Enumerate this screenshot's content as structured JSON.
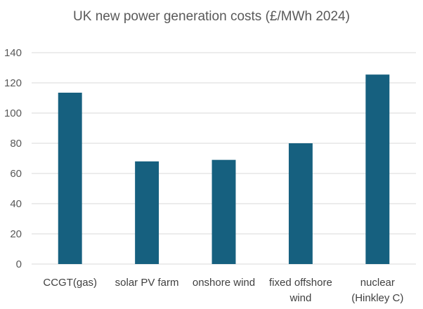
{
  "chart_data": {
    "type": "bar",
    "title": "UK new power generation costs (£/MWh 2024)",
    "xlabel": "",
    "ylabel": "",
    "categories": [
      [
        "CCGT(gas)"
      ],
      [
        "solar PV farm"
      ],
      [
        "onshore wind"
      ],
      [
        "fixed offshore",
        "wind"
      ],
      [
        "nuclear",
        "(Hinkley C)"
      ]
    ],
    "values": [
      113.5,
      68,
      69,
      80,
      125.5
    ],
    "ylim": [
      0,
      140
    ],
    "yticks": [
      0,
      20,
      40,
      60,
      80,
      100,
      120,
      140
    ],
    "grid": true,
    "legend": "none",
    "bar_color": "#16607f",
    "grid_color": "#d9d9d9"
  }
}
